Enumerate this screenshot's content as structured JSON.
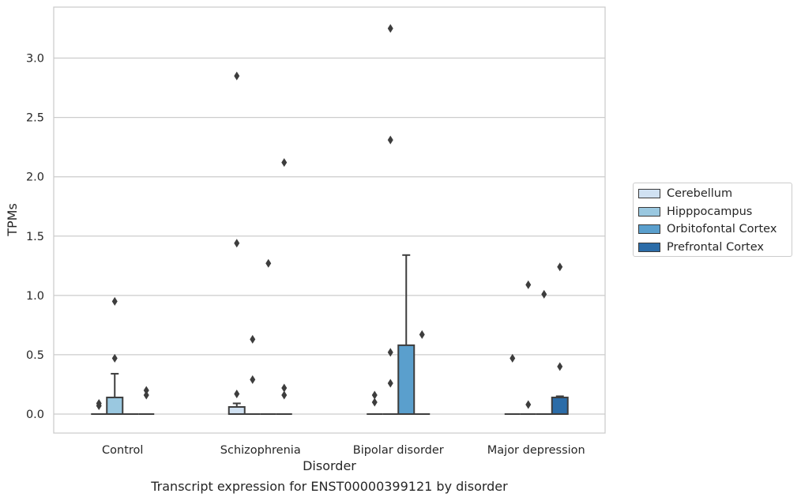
{
  "figure_caption": "Transcript expression for ENST00000399121 by disorder",
  "chart_data": {
    "type": "box",
    "title": "",
    "xlabel": "Disorder",
    "ylabel": "TPMs",
    "categories": [
      "Control",
      "Schizophrenia",
      "Bipolar disorder",
      "Major depression"
    ],
    "ylim": [
      -0.16,
      3.43
    ],
    "yticks": [
      "0.0",
      "0.5",
      "1.0",
      "1.5",
      "2.0",
      "2.5",
      "3.0"
    ],
    "grid": true,
    "legend_position": "right, outside plot",
    "series": [
      {
        "name": "Cerebellum",
        "color": "#d0e1f2",
        "boxes": [
          {
            "q1": 0.0,
            "median": 0.0,
            "q3": 0.0,
            "whisker_low": 0.0,
            "whisker_high": 0.0,
            "outliers": [
              0.07,
              0.09
            ]
          },
          {
            "q1": 0.0,
            "median": 0.0,
            "q3": 0.06,
            "whisker_low": 0.0,
            "whisker_high": 0.09,
            "outliers": [
              0.17,
              1.44,
              2.85
            ]
          },
          {
            "q1": 0.0,
            "median": 0.0,
            "q3": 0.0,
            "whisker_low": 0.0,
            "whisker_high": 0.0,
            "outliers": [
              0.1,
              0.16
            ]
          },
          {
            "q1": 0.0,
            "median": 0.0,
            "q3": 0.0,
            "whisker_low": 0.0,
            "whisker_high": 0.0,
            "outliers": [
              0.47
            ]
          }
        ]
      },
      {
        "name": "Hipppocampus",
        "color": "#9ac8e0",
        "boxes": [
          {
            "q1": 0.0,
            "median": 0.0,
            "q3": 0.14,
            "whisker_low": 0.0,
            "whisker_high": 0.34,
            "outliers": [
              0.47,
              0.95
            ]
          },
          {
            "q1": 0.0,
            "median": 0.0,
            "q3": 0.0,
            "whisker_low": 0.0,
            "whisker_high": 0.0,
            "outliers": [
              0.29,
              0.63
            ]
          },
          {
            "q1": 0.0,
            "median": 0.0,
            "q3": 0.0,
            "whisker_low": 0.0,
            "whisker_high": 0.0,
            "outliers": [
              0.26,
              0.52,
              2.31,
              3.25
            ]
          },
          {
            "q1": 0.0,
            "median": 0.0,
            "q3": 0.0,
            "whisker_low": 0.0,
            "whisker_high": 0.0,
            "outliers": [
              0.08,
              1.09
            ]
          }
        ]
      },
      {
        "name": "Orbitofontal Cortex",
        "color": "#5a9fcd",
        "boxes": [
          {
            "q1": 0.0,
            "median": 0.0,
            "q3": 0.0,
            "whisker_low": 0.0,
            "whisker_high": 0.0,
            "outliers": []
          },
          {
            "q1": 0.0,
            "median": 0.0,
            "q3": 0.0,
            "whisker_low": 0.0,
            "whisker_high": 0.0,
            "outliers": [
              1.27
            ]
          },
          {
            "q1": 0.0,
            "median": 0.0,
            "q3": 0.58,
            "whisker_low": 0.0,
            "whisker_high": 1.34,
            "outliers": []
          },
          {
            "q1": 0.0,
            "median": 0.0,
            "q3": 0.0,
            "whisker_low": 0.0,
            "whisker_high": 0.0,
            "outliers": [
              1.01
            ]
          }
        ]
      },
      {
        "name": "Prefrontal Cortex",
        "color": "#2b6ca8",
        "boxes": [
          {
            "q1": 0.0,
            "median": 0.0,
            "q3": 0.0,
            "whisker_low": 0.0,
            "whisker_high": 0.0,
            "outliers": [
              0.16,
              0.2
            ]
          },
          {
            "q1": 0.0,
            "median": 0.0,
            "q3": 0.0,
            "whisker_low": 0.0,
            "whisker_high": 0.0,
            "outliers": [
              0.16,
              0.22,
              2.12
            ]
          },
          {
            "q1": 0.0,
            "median": 0.0,
            "q3": 0.0,
            "whisker_low": 0.0,
            "whisker_high": 0.0,
            "outliers": [
              0.67
            ]
          },
          {
            "q1": 0.0,
            "median": 0.0,
            "q3": 0.14,
            "whisker_low": 0.0,
            "whisker_high": 0.15,
            "outliers": [
              0.4,
              1.24
            ]
          }
        ]
      }
    ]
  }
}
